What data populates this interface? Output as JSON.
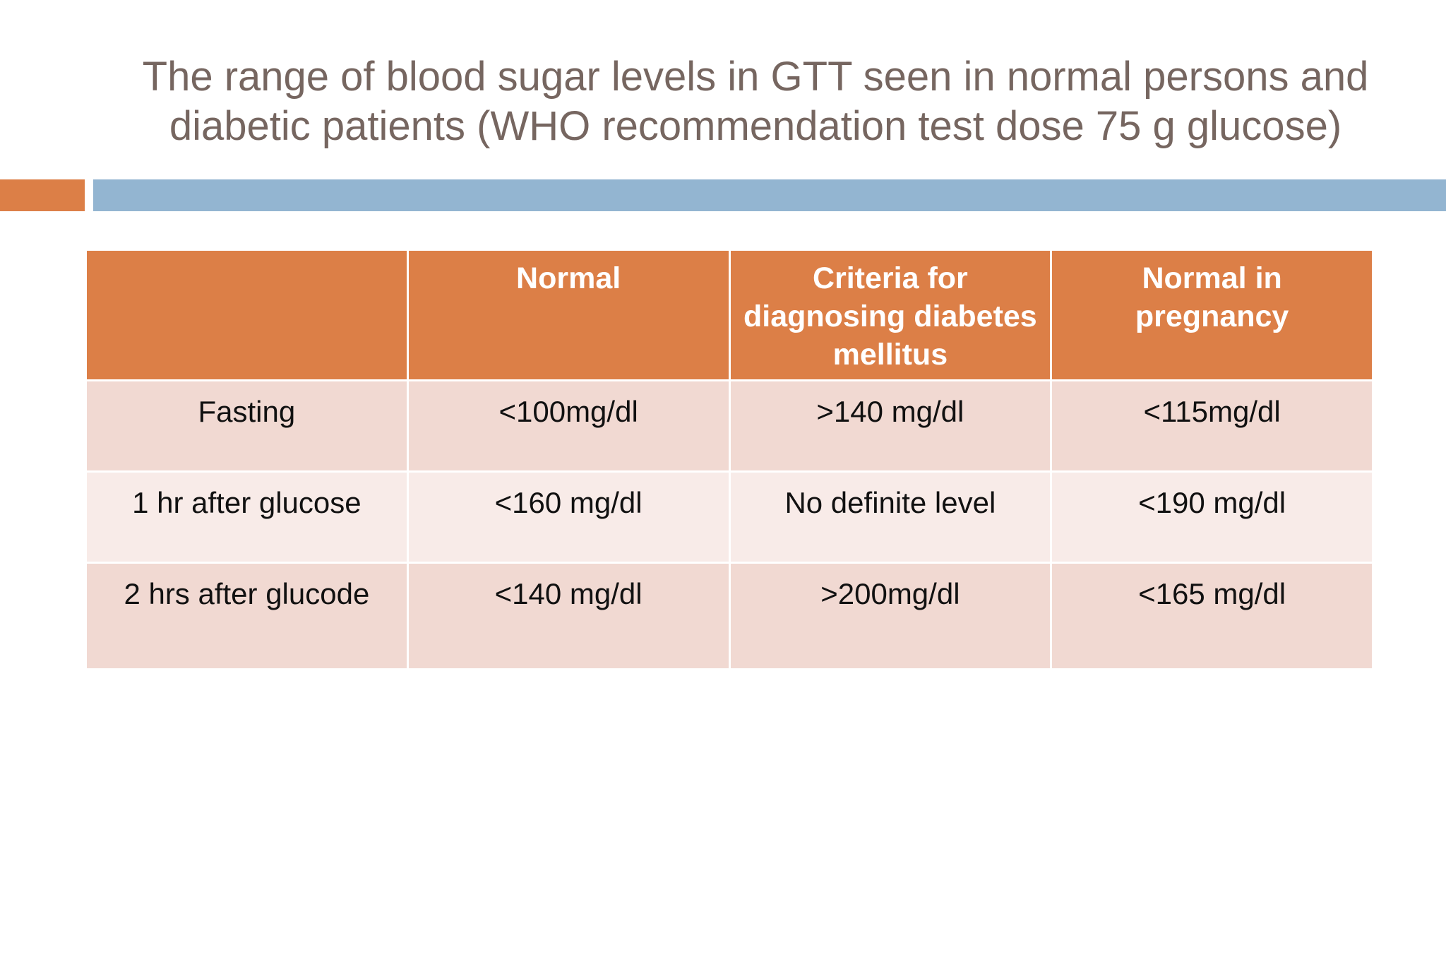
{
  "title": {
    "line1": "The range of blood sugar levels in GTT seen in normal persons and",
    "line2": "diabetic patients  (WHO recommendation test dose 75 g glucose)"
  },
  "table": {
    "headers": [
      "",
      "Normal",
      "Criteria for diagnosing diabetes mellitus",
      "Normal in pregnancy"
    ],
    "rows": [
      [
        "Fasting",
        "<100mg/dl",
        ">140 mg/dl",
        "<115mg/dl"
      ],
      [
        "1 hr after glucose",
        "<160 mg/dl",
        "No definite level",
        "<190 mg/dl"
      ],
      [
        "2 hrs after glucode",
        "<140 mg/dl",
        ">200mg/dl",
        "<165 mg/dl"
      ]
    ]
  },
  "colors": {
    "title_text": "#766660",
    "accent_orange": "#dc7f47",
    "accent_blue": "#93b5d1",
    "header_bg": "#dc7f47",
    "row_dark": "#f1d9d2",
    "row_light": "#f8ebe8"
  }
}
